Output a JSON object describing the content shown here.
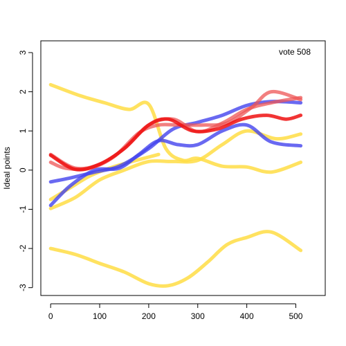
{
  "chart_data": {
    "type": "line",
    "title": "",
    "annotation": "vote 508",
    "xlabel": "",
    "ylabel": "Ideal points",
    "xlim": [
      -20,
      560
    ],
    "ylim": [
      -3.2,
      3.3
    ],
    "xticks": [
      0,
      100,
      200,
      300,
      400,
      500
    ],
    "yticks": [
      -3,
      -2,
      -1,
      0,
      1,
      2,
      3
    ],
    "grid": false,
    "legend": "none",
    "colors": {
      "red": "#ee1111",
      "light_red": "#ee5555",
      "blue": "#4444ee",
      "yellow": "#ffdd44"
    },
    "series": [
      {
        "color": "yellow",
        "x": [
          0,
          60,
          110,
          160,
          200,
          235,
          270,
          300,
          350,
          400,
          450,
          510
        ],
        "y": [
          2.18,
          1.9,
          1.72,
          1.55,
          1.68,
          0.55,
          0.25,
          0.3,
          0.1,
          0.08,
          -0.05,
          0.2
        ]
      },
      {
        "color": "yellow",
        "x": [
          0,
          40,
          80,
          120,
          160,
          220
        ],
        "y": [
          -0.75,
          -0.45,
          -0.15,
          0.05,
          0.2,
          0.4
        ]
      },
      {
        "color": "yellow",
        "x": [
          0,
          50,
          100,
          150,
          200,
          250,
          300,
          350,
          400,
          460,
          510
        ],
        "y": [
          -0.98,
          -0.7,
          -0.25,
          0.0,
          0.22,
          0.22,
          0.25,
          0.65,
          1.0,
          0.8,
          0.92
        ]
      },
      {
        "color": "yellow",
        "x": [
          0,
          50,
          100,
          150,
          200,
          240,
          280,
          320,
          360,
          400,
          450,
          510
        ],
        "y": [
          -2.0,
          -2.15,
          -2.38,
          -2.6,
          -2.9,
          -2.95,
          -2.75,
          -2.35,
          -1.9,
          -1.72,
          -1.58,
          -2.05
        ]
      },
      {
        "color": "blue",
        "x": [
          0,
          40,
          90,
          140,
          200,
          250,
          300,
          350,
          400,
          450,
          510
        ],
        "y": [
          -0.3,
          -0.2,
          -0.05,
          0.1,
          0.55,
          1.05,
          1.22,
          1.4,
          1.65,
          1.75,
          1.72
        ]
      },
      {
        "color": "blue",
        "x": [
          0,
          40,
          90,
          140,
          180,
          220,
          260,
          300,
          350,
          400,
          450,
          510
        ],
        "y": [
          -0.9,
          -0.4,
          0.0,
          0.05,
          0.4,
          0.75,
          0.65,
          0.65,
          1.0,
          1.15,
          0.72,
          0.62
        ]
      },
      {
        "color": "light_red",
        "x": [
          0,
          30,
          80,
          130,
          180,
          220,
          260,
          310,
          360,
          410,
          450,
          510
        ],
        "y": [
          0.2,
          0.05,
          0.05,
          0.35,
          0.95,
          1.15,
          1.15,
          1.15,
          1.2,
          1.6,
          2.0,
          1.8
        ]
      },
      {
        "color": "light_red",
        "x": [
          0,
          50,
          100,
          150,
          200,
          250,
          300,
          350,
          400,
          450,
          510
        ],
        "y": [
          0.4,
          0.05,
          0.15,
          0.55,
          1.15,
          1.3,
          0.98,
          1.2,
          1.55,
          1.72,
          1.85
        ]
      },
      {
        "color": "red",
        "x": [
          0,
          50,
          100,
          150,
          200,
          240,
          290,
          340,
          390,
          440,
          480,
          510
        ],
        "y": [
          0.38,
          0.02,
          0.15,
          0.55,
          1.15,
          1.3,
          1.0,
          1.05,
          1.3,
          1.4,
          1.3,
          1.4
        ]
      }
    ]
  }
}
